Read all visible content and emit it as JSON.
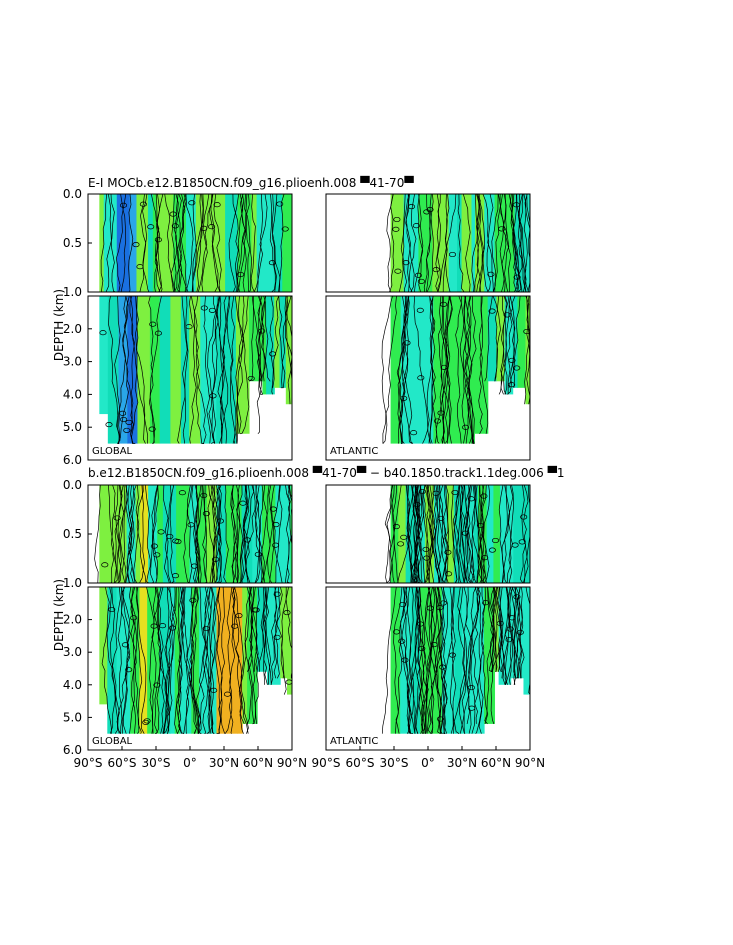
{
  "figure": {
    "title_top": "E-I MOCb.e12.B1850CN.f09_g16.plioenh.008 ▀41-70▀",
    "title_bottom": "b.e12.B1850CN.f09_g16.plioenh.008 ▀41-70▀ − b40.1850.track1.1deg.006 ▀1",
    "ylabel": "DEPTH (km)"
  },
  "colors": {
    "cyan": "#22e8c8",
    "green": "#30ec50",
    "teal": "#11ddb8",
    "lime": "#7ef040",
    "blue": "#2aa6e8",
    "darkblue": "#1a70e0",
    "yellow": "#e6e020",
    "orange": "#f0b020"
  },
  "chart_data": [
    {
      "type": "heatmap",
      "title": "E-I MOCb.e12.B1850CN.f09_g16.plioenh.008 ▀41-70▀",
      "label": "GLOBAL",
      "ylabel": "DEPTH (km)",
      "xlim": [
        -90,
        90
      ],
      "upper_yticks": [
        "0.0",
        "0.5",
        "1.0"
      ],
      "lower_yticks": [
        "2.0",
        "3.0",
        "4.0",
        "5.0",
        "6.0"
      ],
      "ylim_upper": [
        0,
        1
      ],
      "ylim_lower": [
        1,
        6
      ]
    },
    {
      "type": "heatmap",
      "label": "ATLANTIC",
      "xlim": [
        -90,
        90
      ],
      "ylim_upper": [
        0,
        1
      ],
      "ylim_lower": [
        1,
        6
      ]
    },
    {
      "type": "heatmap",
      "title": "b.e12.B1850CN.f09_g16.plioenh.008 ▀41-70▀ − b40.1850.track1.1deg.006 ▀1",
      "label": "GLOBAL",
      "ylabel": "DEPTH (km)",
      "xticks": [
        "90°S",
        "60°S",
        "30°S",
        "0°",
        "30°N",
        "60°N",
        "90°N"
      ],
      "upper_yticks": [
        "0.0",
        "0.5",
        "1.0"
      ],
      "lower_yticks": [
        "2.0",
        "3.0",
        "4.0",
        "5.0",
        "6.0"
      ],
      "xlim": [
        -90,
        90
      ],
      "ylim_upper": [
        0,
        1
      ],
      "ylim_lower": [
        1,
        6
      ]
    },
    {
      "type": "heatmap",
      "label": "ATLANTIC",
      "xticks": [
        "90°S",
        "60°S",
        "30°S",
        "0°",
        "30°N",
        "60°N",
        "90°N"
      ],
      "xlim": [
        -90,
        90
      ],
      "ylim_upper": [
        0,
        1
      ],
      "ylim_lower": [
        1,
        6
      ]
    }
  ]
}
